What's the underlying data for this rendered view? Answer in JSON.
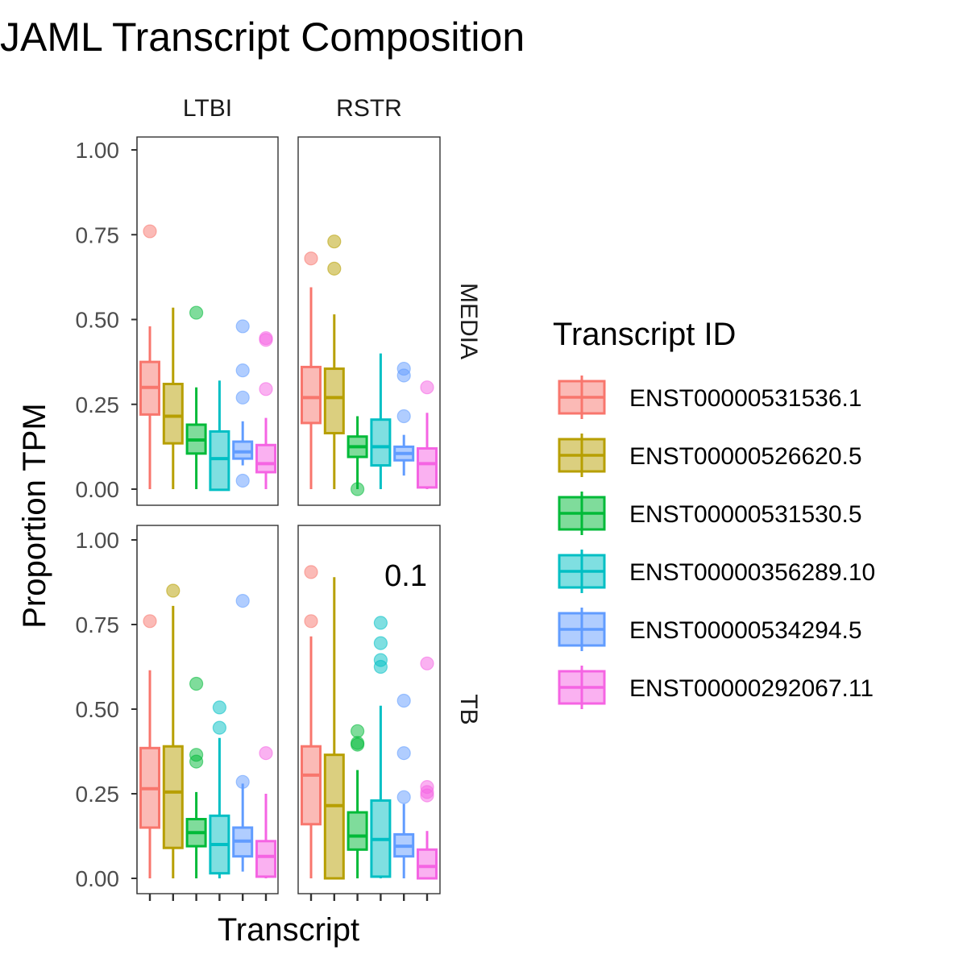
{
  "chart_data": {
    "type": "box",
    "title": "JAML Transcript Composition",
    "xlabel": "Transcript",
    "ylabel": "Proportion TPM",
    "ylim": [
      0,
      1
    ],
    "yticks": [
      0,
      0.25,
      0.5,
      0.75,
      1
    ],
    "ytick_labels": [
      "0.00",
      "0.25",
      "0.50",
      "0.75",
      "1.00"
    ],
    "facet_cols": [
      "LTBI",
      "RSTR"
    ],
    "facet_rows": [
      "MEDIA",
      "TB"
    ],
    "legend": {
      "title": "Transcript ID",
      "position": "right"
    },
    "series": [
      {
        "name": "ENST00000531536.1",
        "color": "#F8766D"
      },
      {
        "name": "ENST00000526620.5",
        "color": "#B79F00"
      },
      {
        "name": "ENST00000531530.5",
        "color": "#00BA38"
      },
      {
        "name": "ENST00000356289.10",
        "color": "#00BFC4"
      },
      {
        "name": "ENST00000534294.5",
        "color": "#619CFF"
      },
      {
        "name": "ENST00000292067.11",
        "color": "#F564E3"
      }
    ],
    "panels": [
      {
        "col": "LTBI",
        "row": "MEDIA",
        "annotation": "",
        "boxes": [
          {
            "lw": 0.0,
            "q1": 0.22,
            "med": 0.3,
            "q3": 0.375,
            "uw": 0.48,
            "outliers": [
              0.76
            ]
          },
          {
            "lw": 0.0,
            "q1": 0.135,
            "med": 0.215,
            "q3": 0.31,
            "uw": 0.535,
            "outliers": []
          },
          {
            "lw": 0.0,
            "q1": 0.105,
            "med": 0.145,
            "q3": 0.19,
            "uw": 0.3,
            "outliers": [
              0.52
            ]
          },
          {
            "lw": 0.0,
            "q1": -0.002,
            "med": 0.09,
            "q3": 0.17,
            "uw": 0.32,
            "outliers": []
          },
          {
            "lw": 0.07,
            "q1": 0.09,
            "med": 0.11,
            "q3": 0.14,
            "uw": 0.2,
            "outliers": [
              0.48,
              0.35,
              0.27,
              0.025
            ]
          },
          {
            "lw": 0.0,
            "q1": 0.05,
            "med": 0.075,
            "q3": 0.13,
            "uw": 0.21,
            "outliers": [
              0.445,
              0.44,
              0.295
            ]
          }
        ]
      },
      {
        "col": "RSTR",
        "row": "MEDIA",
        "annotation": "",
        "boxes": [
          {
            "lw": 0.0,
            "q1": 0.195,
            "med": 0.27,
            "q3": 0.36,
            "uw": 0.595,
            "outliers": [
              0.68
            ]
          },
          {
            "lw": 0.0,
            "q1": 0.165,
            "med": 0.27,
            "q3": 0.355,
            "uw": 0.515,
            "outliers": [
              0.73,
              0.65
            ]
          },
          {
            "lw": 0.0,
            "q1": 0.095,
            "med": 0.125,
            "q3": 0.155,
            "uw": 0.215,
            "outliers": [
              0.0
            ]
          },
          {
            "lw": 0.0,
            "q1": 0.07,
            "med": 0.125,
            "q3": 0.205,
            "uw": 0.4,
            "outliers": []
          },
          {
            "lw": 0.04,
            "q1": 0.085,
            "med": 0.105,
            "q3": 0.125,
            "uw": 0.16,
            "outliers": [
              0.355,
              0.335,
              0.215
            ]
          },
          {
            "lw": 0.0,
            "q1": 0.005,
            "med": 0.075,
            "q3": 0.12,
            "uw": 0.225,
            "outliers": [
              0.3
            ]
          }
        ]
      },
      {
        "col": "LTBI",
        "row": "TB",
        "annotation": "",
        "boxes": [
          {
            "lw": 0.0,
            "q1": 0.15,
            "med": 0.265,
            "q3": 0.385,
            "uw": 0.615,
            "outliers": [
              0.76
            ]
          },
          {
            "lw": 0.0,
            "q1": 0.09,
            "med": 0.255,
            "q3": 0.39,
            "uw": 0.805,
            "outliers": [
              0.85
            ]
          },
          {
            "lw": 0.0,
            "q1": 0.095,
            "med": 0.135,
            "q3": 0.175,
            "uw": 0.255,
            "outliers": [
              0.575,
              0.365,
              0.345
            ]
          },
          {
            "lw": 0.0,
            "q1": 0.015,
            "med": 0.1,
            "q3": 0.185,
            "uw": 0.415,
            "outliers": [
              0.505,
              0.445
            ]
          },
          {
            "lw": 0.02,
            "q1": 0.065,
            "med": 0.11,
            "q3": 0.15,
            "uw": 0.28,
            "outliers": [
              0.82,
              0.285
            ]
          },
          {
            "lw": 0.0,
            "q1": 0.005,
            "med": 0.065,
            "q3": 0.11,
            "uw": 0.25,
            "outliers": [
              0.37
            ]
          }
        ]
      },
      {
        "col": "RSTR",
        "row": "TB",
        "annotation": "0.1",
        "boxes": [
          {
            "lw": 0.0,
            "q1": 0.16,
            "med": 0.305,
            "q3": 0.39,
            "uw": 0.715,
            "outliers": [
              0.905,
              0.76
            ]
          },
          {
            "lw": 0.0,
            "q1": 0.0,
            "med": 0.215,
            "q3": 0.365,
            "uw": 0.89,
            "outliers": []
          },
          {
            "lw": 0.0,
            "q1": 0.085,
            "med": 0.125,
            "q3": 0.195,
            "uw": 0.32,
            "outliers": [
              0.435,
              0.4,
              0.395
            ]
          },
          {
            "lw": 0.0,
            "q1": 0.005,
            "med": 0.115,
            "q3": 0.23,
            "uw": 0.51,
            "outliers": [
              0.755,
              0.695,
              0.645,
              0.625
            ]
          },
          {
            "lw": 0.0,
            "q1": 0.065,
            "med": 0.095,
            "q3": 0.13,
            "uw": 0.22,
            "outliers": [
              0.525,
              0.37,
              0.24
            ]
          },
          {
            "lw": 0.0,
            "q1": 0.0,
            "med": 0.035,
            "q3": 0.085,
            "uw": 0.14,
            "outliers": [
              0.635,
              0.27,
              0.255,
              0.245
            ]
          }
        ]
      }
    ]
  }
}
